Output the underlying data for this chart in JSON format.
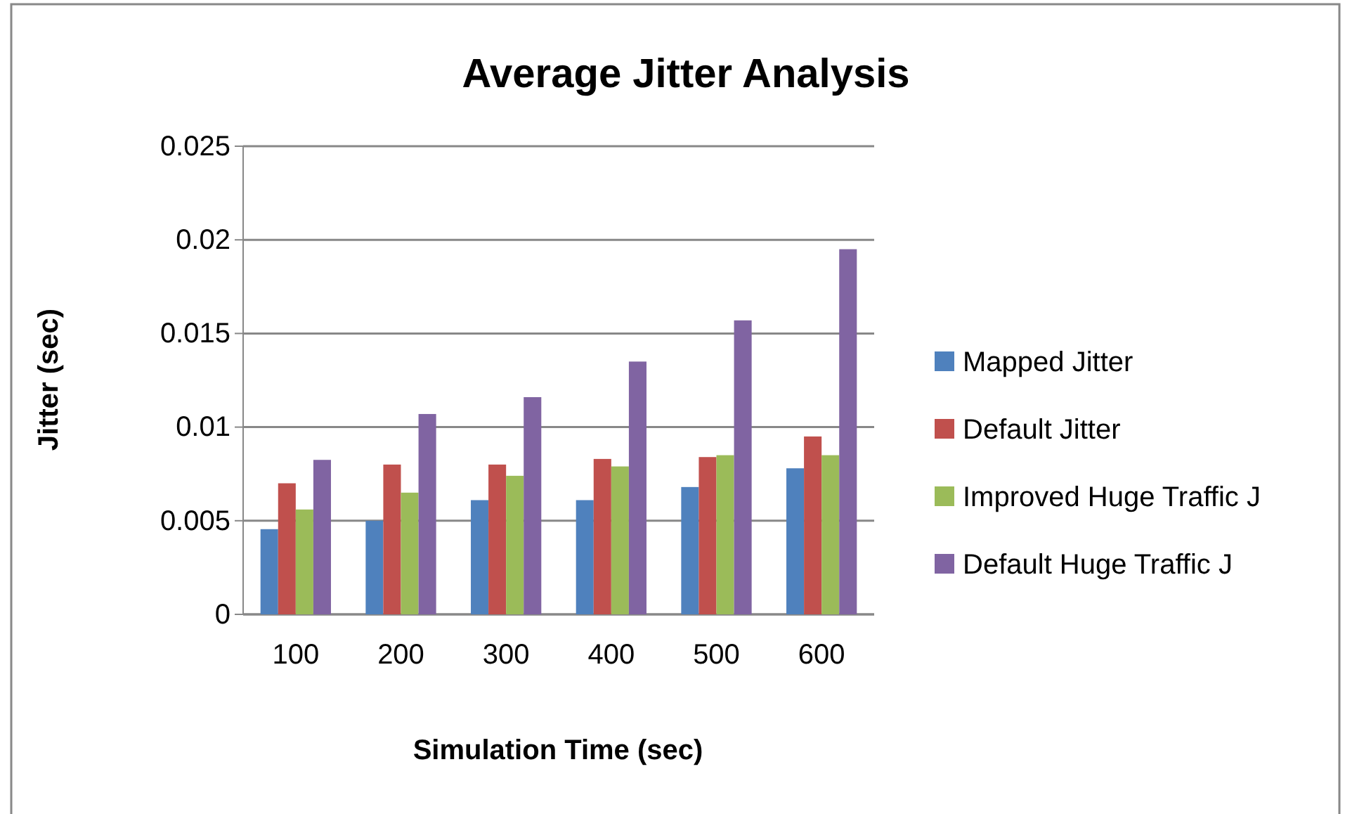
{
  "chart_data": {
    "type": "bar",
    "title": "Average Jitter Analysis",
    "xlabel": "Simulation Time (sec)",
    "ylabel": "Jitter (sec)",
    "categories": [
      "100",
      "200",
      "300",
      "400",
      "500",
      "600"
    ],
    "series": [
      {
        "name": "Mapped Jitter",
        "color": "#4f81bd",
        "values": [
          0.00455,
          0.005,
          0.0061,
          0.0061,
          0.0068,
          0.0078
        ]
      },
      {
        "name": "Default Jitter",
        "color": "#c0504d",
        "values": [
          0.007,
          0.008,
          0.008,
          0.0083,
          0.0084,
          0.0095
        ]
      },
      {
        "name": "Improved Huge Traffic J",
        "color": "#9bbb59",
        "values": [
          0.0056,
          0.0065,
          0.0074,
          0.0079,
          0.0085,
          0.0085
        ]
      },
      {
        "name": "Default Huge Traffic J",
        "color": "#8064a2",
        "values": [
          0.00825,
          0.0107,
          0.0116,
          0.0135,
          0.0157,
          0.0195
        ]
      }
    ],
    "ylim": [
      0,
      0.025
    ],
    "yticks": [
      0,
      0.005,
      0.01,
      0.015,
      0.02,
      0.025
    ],
    "grid": "y",
    "legend": "right"
  }
}
